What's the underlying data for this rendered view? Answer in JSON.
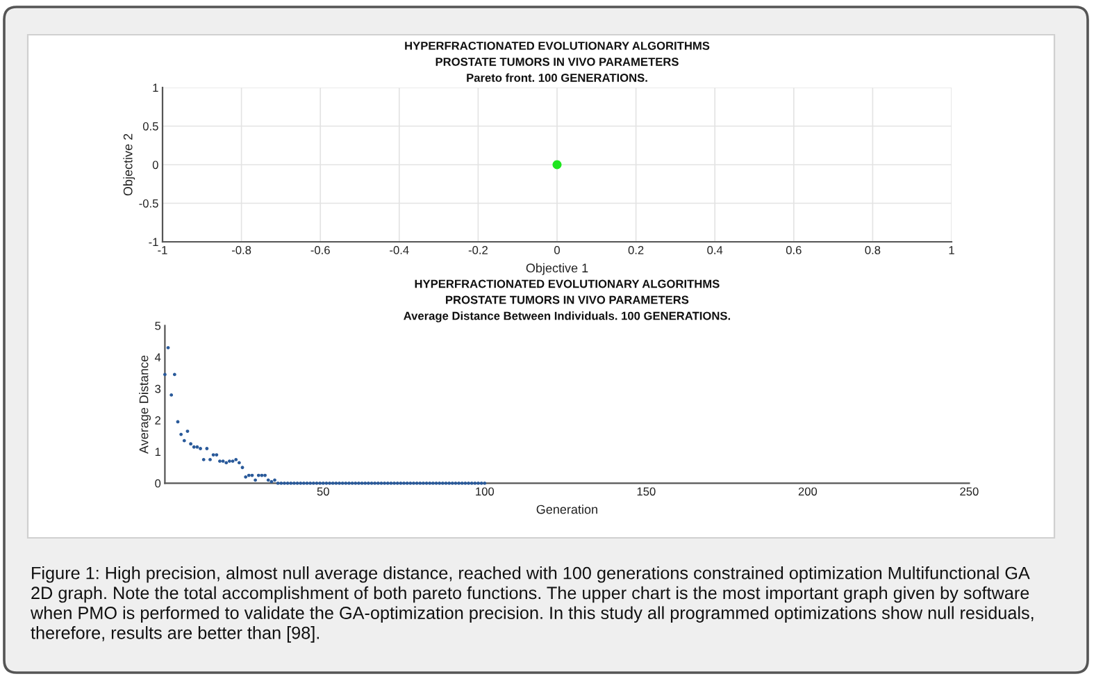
{
  "chart_data": [
    {
      "type": "scatter",
      "title": "HYPERFRACTIONATED EVOLUTIONARY ALGORITHMS\nPROSTATE TUMORS IN VIVO PARAMETERS\nPareto front. 100 GENERATIONS.",
      "xlabel": "Objective 1",
      "ylabel": "Objective 2",
      "x": [
        0
      ],
      "series": [
        {
          "color": "#1ee61e",
          "values": [
            0
          ]
        }
      ],
      "xlim": [
        -1,
        1
      ],
      "xticks": [
        -1,
        -0.8,
        -0.6,
        -0.4,
        -0.2,
        0,
        0.2,
        0.4,
        0.6,
        0.8,
        1
      ],
      "ylim": [
        -1,
        1
      ],
      "yticks": [
        -1,
        -0.5,
        0,
        0.5,
        1
      ],
      "grid": true,
      "marker": "circle"
    },
    {
      "type": "scatter",
      "title": "HYPERFRACTIONATED EVOLUTIONARY ALGORITHMS\nPROSTATE TUMORS IN VIVO PARAMETERS\nAverage Distance Between Individuals. 100 GENERATIONS.",
      "xlabel": "Generation",
      "ylabel": "Average Distance",
      "x": [
        1,
        2,
        3,
        4,
        5,
        6,
        7,
        8,
        9,
        10,
        11,
        12,
        13,
        14,
        15,
        16,
        17,
        18,
        19,
        20,
        21,
        22,
        23,
        24,
        25,
        26,
        27,
        28,
        29,
        30,
        31,
        32,
        33,
        34,
        35,
        36,
        37,
        38,
        39,
        40,
        41,
        42,
        43,
        44,
        45,
        46,
        47,
        48,
        49,
        50,
        51,
        52,
        53,
        54,
        55,
        56,
        57,
        58,
        59,
        60,
        61,
        62,
        63,
        64,
        65,
        66,
        67,
        68,
        69,
        70,
        71,
        72,
        73,
        74,
        75,
        76,
        77,
        78,
        79,
        80,
        81,
        82,
        83,
        84,
        85,
        86,
        87,
        88,
        89,
        90,
        91,
        92,
        93,
        94,
        95,
        96,
        97,
        98,
        99,
        100
      ],
      "series": [
        {
          "color": "#2a5a9a",
          "values": [
            3.45,
            4.3,
            2.8,
            3.45,
            1.95,
            1.55,
            1.35,
            1.65,
            1.25,
            1.15,
            1.15,
            1.1,
            0.75,
            1.1,
            0.75,
            0.9,
            0.9,
            0.7,
            0.7,
            0.65,
            0.7,
            0.7,
            0.75,
            0.65,
            0.5,
            0.2,
            0.25,
            0.25,
            0.1,
            0.25,
            0.25,
            0.25,
            0.1,
            0.05,
            0.1,
            0,
            0,
            0,
            0,
            0,
            0,
            0,
            0,
            0,
            0,
            0,
            0,
            0,
            0,
            0,
            0,
            0,
            0,
            0,
            0,
            0,
            0,
            0,
            0,
            0,
            0,
            0,
            0,
            0,
            0,
            0,
            0,
            0,
            0,
            0,
            0,
            0,
            0,
            0,
            0,
            0,
            0,
            0,
            0,
            0,
            0,
            0,
            0,
            0,
            0,
            0,
            0,
            0,
            0,
            0,
            0,
            0,
            0,
            0,
            0,
            0,
            0,
            0,
            0,
            0
          ]
        }
      ],
      "xlim": [
        1,
        250
      ],
      "xticks": [
        50,
        100,
        150,
        200,
        250
      ],
      "ylim": [
        0,
        5
      ],
      "yticks": [
        0,
        1,
        2,
        3,
        4,
        5
      ],
      "marker": "circle",
      "annotations": [
        "Figure 1: High precision, almost null average distance, reached with 100 generations constrained optimization Multifunctional GA 2D graph. Note the total accomplishment of both pareto functions. The upper chart is the most important graph given by software when PMO is performed to validate the GA-optimization precision. In this study all programmed optimizations show null residuals, therefore, results are better than [98]."
      ]
    }
  ]
}
